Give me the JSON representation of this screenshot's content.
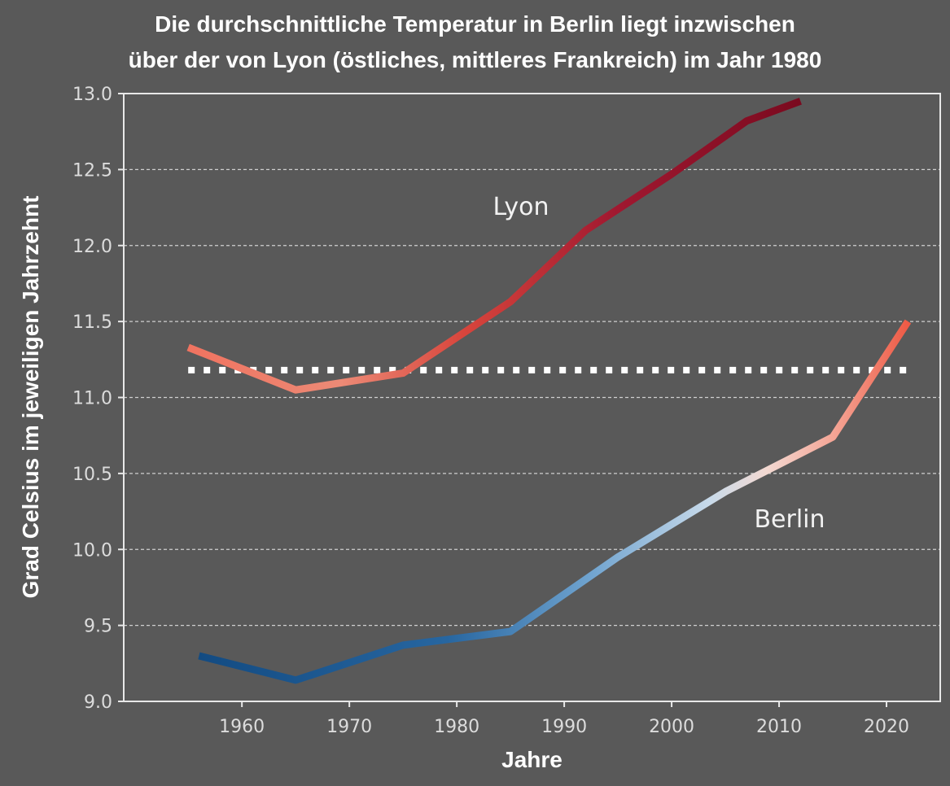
{
  "chart_data": {
    "type": "line",
    "title_lines": [
      "Die durchschnittliche Temperatur in Berlin liegt inzwischen",
      "über der von Lyon (östliches, mittleres Frankreich) im Jahr 1980"
    ],
    "xlabel": "Jahre",
    "ylabel": "Grad Celsius im jeweiligen Jahrzehnt",
    "xlim": [
      1949,
      2025
    ],
    "ylim": [
      9.0,
      13.0
    ],
    "x_ticks": [
      "1960",
      "1970",
      "1980",
      "1990",
      "2000",
      "2010",
      "2020"
    ],
    "y_ticks": [
      "9.0",
      "9.5",
      "10.0",
      "10.5",
      "11.0",
      "11.5",
      "12.0",
      "12.5",
      "13.0"
    ],
    "grid": "horizontal dashed",
    "reference_line": {
      "y": 11.18,
      "style": "dotted white"
    },
    "series": [
      {
        "name": "Lyon",
        "x": [
          1955,
          1965,
          1975,
          1985,
          1992,
          2000,
          2007,
          2012
        ],
        "y": [
          11.33,
          11.05,
          11.16,
          11.63,
          12.1,
          12.47,
          12.82,
          12.95
        ],
        "color_start": "#f07360",
        "color_end": "#7a0a1f"
      },
      {
        "name": "Berlin",
        "x": [
          1956,
          1965,
          1975,
          1985,
          1995,
          2005,
          2015,
          2022
        ],
        "y": [
          9.3,
          9.14,
          9.37,
          9.46,
          9.95,
          10.38,
          10.74,
          11.5
        ],
        "color_start": "#134b82",
        "color_end": "#ee5a45"
      }
    ]
  }
}
